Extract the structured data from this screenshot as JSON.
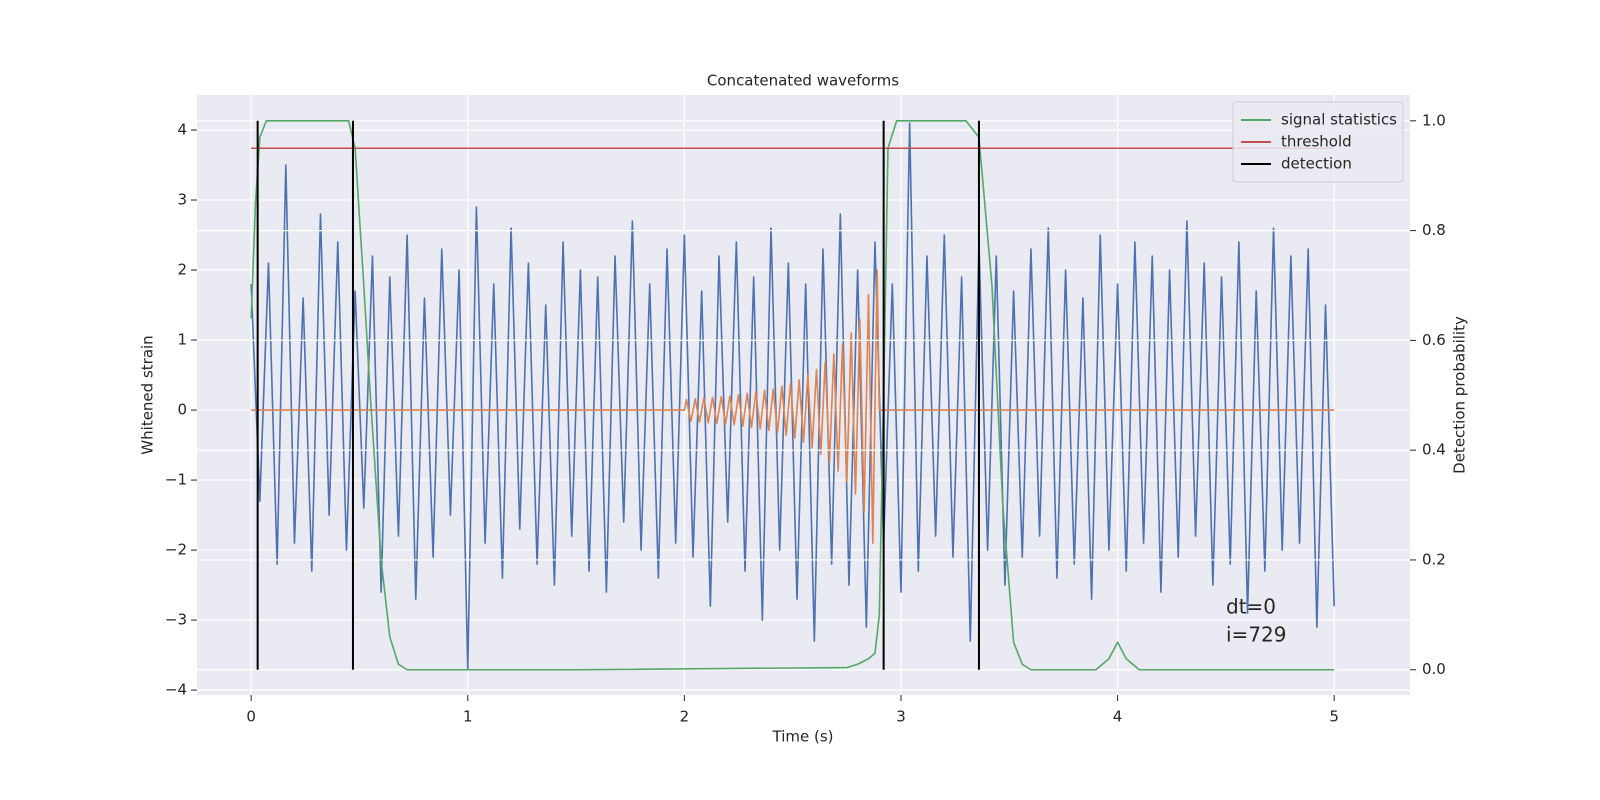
{
  "chart_data": {
    "type": "line",
    "title": "Concatenated waveforms",
    "xlabel": "Time (s)",
    "ylabel": "Whitened strain",
    "y2label": "Detection probability",
    "xlim": [
      -0.25,
      5.35
    ],
    "ylim": [
      -4.07,
      4.5
    ],
    "y2lim": [
      -0.046,
      1.047
    ],
    "xticks": [
      0,
      1,
      2,
      3,
      4,
      5
    ],
    "yticks": [
      {
        "value": -4,
        "label": "−4"
      },
      {
        "value": -3,
        "label": "−3"
      },
      {
        "value": -2,
        "label": "−2"
      },
      {
        "value": -1,
        "label": "−1"
      },
      0,
      1,
      2,
      3,
      4
    ],
    "y2ticks": [
      {
        "value": 0,
        "label": "0.0"
      },
      0.2,
      0.4,
      0.6,
      0.8,
      {
        "value": 1,
        "label": "1.0"
      }
    ],
    "grid": true,
    "legend": "upper right",
    "series": [
      {
        "color": "#4c72b0",
        "x": [
          0,
          0.04,
          0.08,
          0.12,
          0.16,
          0.2,
          0.24,
          0.28,
          0.32,
          0.36,
          0.4,
          0.44,
          0.48,
          0.52,
          0.56,
          0.6,
          0.64,
          0.68,
          0.72,
          0.76,
          0.8,
          0.84,
          0.88,
          0.92,
          0.96,
          1,
          1.04,
          1.08,
          1.12,
          1.16,
          1.2,
          1.24,
          1.28,
          1.32,
          1.36,
          1.4,
          1.44,
          1.48,
          1.52,
          1.56,
          1.6,
          1.64,
          1.68,
          1.72,
          1.76,
          1.8,
          1.84,
          1.88,
          1.92,
          1.96,
          2,
          2.04,
          2.08,
          2.12,
          2.16,
          2.2,
          2.24,
          2.28,
          2.32,
          2.36,
          2.4,
          2.44,
          2.48,
          2.52,
          2.56,
          2.6,
          2.64,
          2.68,
          2.72,
          2.76,
          2.8,
          2.84,
          2.88,
          2.92,
          2.96,
          3,
          3.04,
          3.08,
          3.12,
          3.16,
          3.2,
          3.24,
          3.28,
          3.32,
          3.36,
          3.4,
          3.44,
          3.48,
          3.52,
          3.56,
          3.6,
          3.64,
          3.68,
          3.72,
          3.76,
          3.8,
          3.84,
          3.88,
          3.92,
          3.96,
          4,
          4.04,
          4.08,
          4.12,
          4.16,
          4.2,
          4.24,
          4.28,
          4.32,
          4.36,
          4.4,
          4.44,
          4.48,
          4.52,
          4.56,
          4.6,
          4.64,
          4.68,
          4.72,
          4.76,
          4.8,
          4.84,
          4.88,
          4.92,
          4.96,
          5
        ],
        "values": [
          1.8,
          -1.3,
          2.1,
          -2.2,
          3.5,
          -1.9,
          1.6,
          -2.3,
          2.8,
          -1.5,
          2.4,
          -2.0,
          1.7,
          -1.4,
          2.2,
          -2.6,
          1.9,
          -1.8,
          2.5,
          -2.7,
          1.6,
          -2.1,
          2.3,
          -1.5,
          2.0,
          -3.7,
          2.9,
          -1.9,
          1.8,
          -2.4,
          2.6,
          -1.7,
          2.1,
          -2.2,
          1.5,
          -2.5,
          2.4,
          -1.8,
          2.0,
          -2.3,
          1.9,
          -2.6,
          2.2,
          -1.6,
          2.7,
          -2.0,
          1.8,
          -2.4,
          2.3,
          -1.9,
          2.5,
          -2.1,
          1.7,
          -2.8,
          2.2,
          -1.6,
          2.4,
          -2.3,
          1.9,
          -3.0,
          2.6,
          -2.0,
          2.1,
          -2.7,
          1.8,
          -3.3,
          2.3,
          -2.2,
          2.8,
          -2.5,
          2.0,
          -3.1,
          2.4,
          -1.9,
          1.8,
          -2.6,
          4.1,
          -2.3,
          2.2,
          -1.8,
          2.5,
          -2.1,
          1.9,
          -3.3,
          2.4,
          -2.0,
          2.2,
          -2.5,
          1.7,
          -2.1,
          2.3,
          -1.8,
          2.6,
          -2.4,
          2.0,
          -2.2,
          1.6,
          -2.7,
          2.5,
          -2.0,
          1.8,
          -2.3,
          2.4,
          -1.9,
          2.2,
          -2.6,
          2.0,
          -2.1,
          2.7,
          -1.8,
          2.1,
          -2.5,
          1.9,
          -2.2,
          2.4,
          -2.9,
          1.7,
          -2.3,
          2.6,
          -2.0,
          2.2,
          -1.9,
          2.3,
          -3.1,
          1.5,
          -2.8
        ]
      },
      {
        "color": "#dd8452",
        "x": [
          0,
          2.0,
          2.01,
          2.03,
          2.05,
          2.07,
          2.09,
          2.11,
          2.13,
          2.15,
          2.17,
          2.19,
          2.21,
          2.23,
          2.25,
          2.27,
          2.29,
          2.31,
          2.33,
          2.35,
          2.37,
          2.39,
          2.41,
          2.43,
          2.45,
          2.47,
          2.49,
          2.51,
          2.53,
          2.55,
          2.57,
          2.59,
          2.61,
          2.63,
          2.65,
          2.67,
          2.69,
          2.71,
          2.73,
          2.75,
          2.77,
          2.79,
          2.81,
          2.83,
          2.85,
          2.87,
          2.89,
          2.9,
          5
        ],
        "values": [
          0,
          0,
          0.15,
          -0.16,
          0.16,
          -0.17,
          0.17,
          -0.18,
          0.18,
          -0.19,
          0.19,
          -0.2,
          0.2,
          -0.21,
          0.22,
          -0.23,
          0.24,
          -0.25,
          0.26,
          -0.27,
          0.28,
          -0.29,
          0.3,
          -0.32,
          0.34,
          -0.36,
          0.38,
          -0.4,
          0.43,
          -0.46,
          0.5,
          -0.54,
          0.58,
          -0.63,
          0.68,
          -0.74,
          0.8,
          -0.87,
          0.94,
          -1.02,
          1.1,
          -1.2,
          1.3,
          -1.45,
          1.65,
          -1.9,
          2.0,
          0,
          0
        ]
      },
      {
        "name": "signal statistics",
        "color": "#55a868",
        "axis": "y2",
        "x": [
          0,
          0.02,
          0.04,
          0.07,
          0.1,
          0.45,
          0.48,
          0.52,
          0.55,
          0.6,
          0.64,
          0.68,
          0.72,
          1.5,
          2.75,
          2.8,
          2.85,
          2.88,
          2.9,
          2.92,
          2.94,
          2.98,
          3.3,
          3.36,
          3.42,
          3.47,
          3.52,
          3.56,
          3.6,
          3.9,
          3.96,
          4.0,
          4.04,
          4.1,
          5.0
        ],
        "values": [
          0.64,
          0.85,
          0.97,
          1.0,
          1.0,
          1.0,
          0.95,
          0.7,
          0.5,
          0.2,
          0.06,
          0.01,
          0.0,
          0.0,
          0.004,
          0.01,
          0.02,
          0.03,
          0.1,
          0.5,
          0.95,
          1.0,
          1.0,
          0.97,
          0.7,
          0.3,
          0.05,
          0.01,
          0.0,
          0.0,
          0.02,
          0.05,
          0.02,
          0.0,
          0.0
        ]
      },
      {
        "name": "threshold",
        "color": "#c44e52",
        "axis": "y2",
        "x": [
          0,
          5
        ],
        "values": [
          0.95,
          0.95
        ]
      }
    ],
    "detections": {
      "name": "detection",
      "color": "#000000",
      "axis": "y2",
      "x": [
        0.03,
        0.47,
        2.92,
        3.36
      ],
      "y2range": [
        0,
        1
      ]
    },
    "annotations": [
      "dt=0",
      "i=729"
    ]
  }
}
